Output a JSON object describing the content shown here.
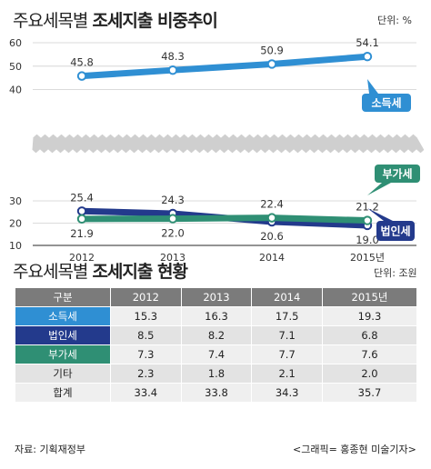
{
  "header": {
    "title_regular": "주요세목별 ",
    "title_bold": "조세지출 비중추이",
    "unit": "단위: %"
  },
  "chart_data": {
    "type": "line",
    "categories": [
      "2012",
      "2013",
      "2014",
      "2015년"
    ],
    "y_ticks": [
      "10",
      "20",
      "30",
      "40",
      "50",
      "60"
    ],
    "y_axis_break": [
      37,
      44
    ],
    "grid": true,
    "series": [
      {
        "name": "소득세",
        "values": [
          45.8,
          48.3,
          50.9,
          54.1
        ],
        "labels": [
          "45.8",
          "48.3",
          "50.9",
          "54.1"
        ],
        "color": "#2f8fd3"
      },
      {
        "name": "법인세",
        "values": [
          25.4,
          24.3,
          20.6,
          19.0
        ],
        "labels": [
          "25.4",
          "24.3",
          "20.6",
          "19.0"
        ],
        "color": "#233a8c"
      },
      {
        "name": "부가세",
        "values": [
          21.9,
          22.0,
          22.4,
          21.2
        ],
        "labels": [
          "21.9",
          "22.0",
          "22.4",
          "21.2"
        ],
        "color": "#2f8f74"
      }
    ]
  },
  "table_section": {
    "title_regular": "주요세목별 ",
    "title_bold": "조세지출 현황",
    "unit": "단위: 조원",
    "columns": [
      "구분",
      "2012",
      "2013",
      "2014",
      "2015년"
    ],
    "rows": [
      {
        "label": "소득세",
        "values": [
          "15.3",
          "16.3",
          "17.5",
          "19.3"
        ]
      },
      {
        "label": "법인세",
        "values": [
          "8.5",
          "8.2",
          "7.1",
          "6.8"
        ]
      },
      {
        "label": "부가세",
        "values": [
          "7.3",
          "7.4",
          "7.7",
          "7.6"
        ]
      },
      {
        "label": "기타",
        "values": [
          "2.3",
          "1.8",
          "2.1",
          "2.0"
        ]
      },
      {
        "label": "합계",
        "values": [
          "33.4",
          "33.8",
          "34.3",
          "35.7"
        ]
      }
    ]
  },
  "footer": {
    "source": "자료: 기획재정부",
    "credit": "<그래픽= 홍종현 미술기자>"
  }
}
